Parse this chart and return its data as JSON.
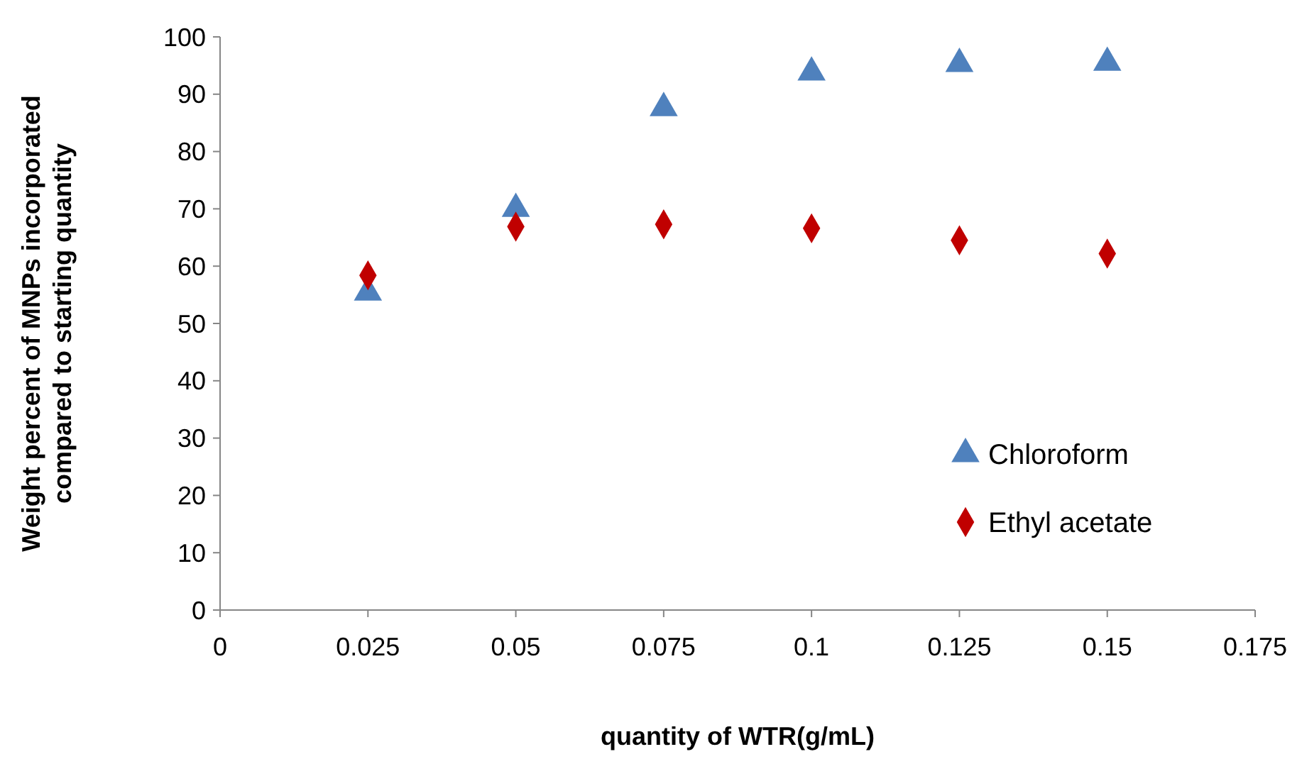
{
  "chart_data": {
    "type": "scatter",
    "xlabel": "quantity of WTR(g/mL)",
    "ylabel": "Weight percent of MNPs incorporated compared to starting quantity",
    "x": [
      0.025,
      0.05,
      0.075,
      0.1,
      0.125,
      0.15
    ],
    "series": [
      {
        "name": "Chloroform",
        "color": "#4f81bd",
        "marker": "triangle",
        "values": [
          55.4,
          70,
          87.6,
          93.8,
          95.3,
          95.5
        ]
      },
      {
        "name": "Ethyl acetate",
        "color": "#c00000",
        "marker": "diamond",
        "values": [
          58.4,
          66.9,
          67.3,
          66.6,
          64.5,
          62.2
        ]
      }
    ],
    "xlim": [
      0,
      0.175
    ],
    "xticks": [
      0,
      0.025,
      0.05,
      0.075,
      0.1,
      0.125,
      0.15,
      0.175
    ],
    "ylim": [
      0,
      100
    ],
    "yticks": [
      0,
      10,
      20,
      30,
      40,
      50,
      60,
      70,
      80,
      90,
      100
    ],
    "grid": false,
    "legend": "right"
  }
}
